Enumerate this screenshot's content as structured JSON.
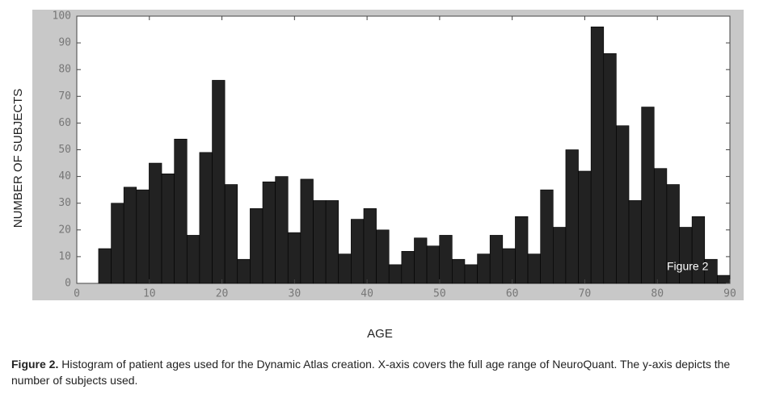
{
  "chart_data": {
    "type": "histogram",
    "bins": [
      3,
      4.74,
      6.48,
      8.22,
      9.96,
      11.7,
      13.44,
      15.18,
      16.92,
      18.66,
      20.4,
      22.14,
      23.88,
      25.62,
      27.36,
      29.1,
      30.84,
      32.58,
      34.32,
      36.06,
      37.8,
      39.54,
      41.28,
      43.02,
      44.76,
      46.5,
      48.24,
      49.98,
      51.72,
      53.46,
      55.2,
      56.94,
      58.68,
      60.42,
      62.16,
      63.9,
      65.64,
      67.38,
      69.12,
      70.86,
      72.6,
      74.34,
      76.08,
      77.82,
      79.56,
      81.3,
      83.04,
      84.78,
      86.52,
      88.26,
      90
    ],
    "values": [
      13,
      30,
      36,
      35,
      45,
      41,
      54,
      18,
      49,
      76,
      37,
      9,
      28,
      38,
      40,
      19,
      39,
      31,
      31,
      11,
      24,
      28,
      20,
      7,
      12,
      17,
      14,
      18,
      9,
      7,
      11,
      18,
      13,
      25,
      11,
      35,
      21,
      50,
      42,
      96,
      86,
      59,
      31,
      66,
      43,
      37,
      21,
      25,
      9,
      3
    ],
    "color": "#222222",
    "xlim": [
      0,
      90
    ],
    "xticks": [
      0,
      10,
      20,
      30,
      40,
      50,
      60,
      70,
      80,
      90
    ],
    "ylim": [
      0,
      100
    ],
    "yticks": [
      0,
      10,
      20,
      30,
      40,
      50,
      60,
      70,
      80,
      90,
      100
    ],
    "xlabel": "AGE",
    "ylabel": "NUMBER OF SUBJECTS",
    "annotation": "Figure 2",
    "caption_label": "Figure 2.",
    "caption": "Histogram of patient ages used for the Dynamic Atlas creation. X-axis covers the full age range of NeuroQuant. The y-axis depicts the number of subjects used."
  }
}
